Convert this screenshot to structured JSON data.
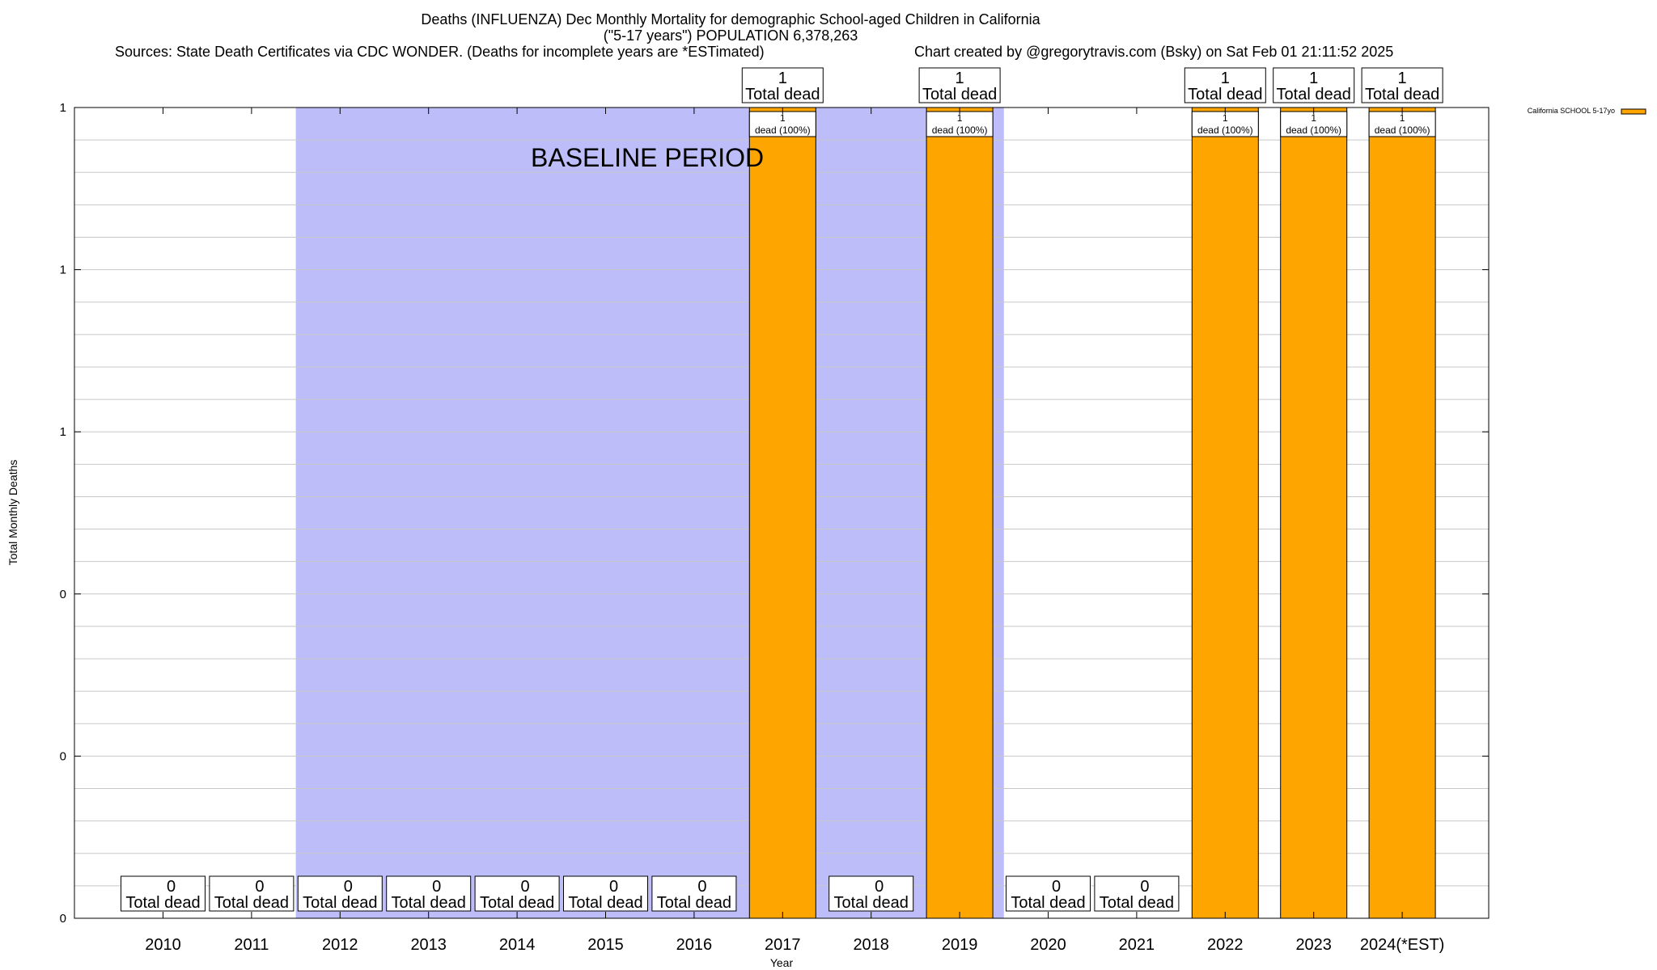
{
  "chart_data": {
    "type": "bar",
    "title_line1": "Deaths (INFLUENZA) Dec Monthly Mortality for demographic School-aged Children in California",
    "title_line2": "(\"5-17 years\") POPULATION 6,378,263",
    "sources": "Sources: State Death Certificates via CDC WONDER. (Deaths for incomplete years are *ESTimated)",
    "credit": "Chart created by @gregorytravis.com (Bsky) on Sat Feb 01 21:11:52 2025",
    "xlabel": "Year",
    "ylabel": "Total Monthly Deaths",
    "ylim": [
      0,
      1
    ],
    "y_tick_values": [
      0,
      0.2,
      0.4,
      0.6,
      0.8,
      1
    ],
    "y_tick_labels": [
      "0",
      "0",
      "0",
      "1",
      "1",
      "1"
    ],
    "grid": true,
    "baseline_label": "BASELINE PERIOD",
    "baseline_color": "#bdbdfa",
    "bar_color": "#ffa500",
    "categories": [
      "2010",
      "2011",
      "2012",
      "2013",
      "2014",
      "2015",
      "2016",
      "2017",
      "2018",
      "2019",
      "2020",
      "2021",
      "2022",
      "2023",
      "2024(*EST)"
    ],
    "baseline_categories": [
      "2012",
      "2013",
      "2014",
      "2015",
      "2016",
      "2017",
      "2018",
      "2019"
    ],
    "series": [
      {
        "name": "California SCHOOL 5-17yo",
        "values": [
          0,
          0,
          0,
          0,
          0,
          0,
          0,
          1,
          0,
          1,
          0,
          0,
          1,
          1,
          1
        ]
      }
    ],
    "total_label_values": [
      "0",
      "0",
      "0",
      "0",
      "0",
      "0",
      "0",
      "1",
      "0",
      "1",
      "0",
      "0",
      "1",
      "1",
      "1"
    ],
    "total_label_text": "Total dead",
    "inner_label_value": "1",
    "inner_label_text": "dead (100%)",
    "legend_position": "top-right"
  }
}
